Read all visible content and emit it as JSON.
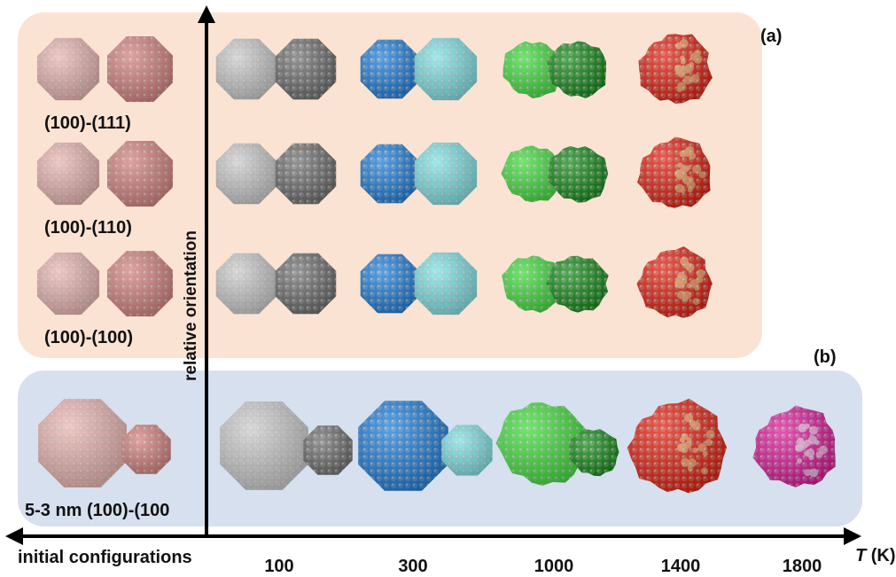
{
  "panels": {
    "a": {
      "letter": "(a)",
      "rows": [
        {
          "label": "(100)-(111)"
        },
        {
          "label": "(100)-(110)"
        },
        {
          "label": "(100)-(100)"
        }
      ]
    },
    "b": {
      "letter": "(b)",
      "label": "5-3 nm (100)-(100"
    }
  },
  "axes": {
    "y_label": "relative orientation",
    "x_left_label": "initial configurations",
    "x_label_italic": "T",
    "x_label_unit": " (K)",
    "x_ticks": [
      "100",
      "300",
      "1000",
      "1400",
      "1800"
    ]
  },
  "colors": {
    "initial_left": "#f0b8b4",
    "initial_right": "#d8827e",
    "t100_left": "#cfcfcf",
    "t100_right": "#6e6e6e",
    "t300_left": "#1f7fdc",
    "t300_right": "#7fe6ea",
    "t1000_left": "#3fe03a",
    "t1000_right": "#138a16",
    "t1400_main": "#e42010",
    "t1400_accent": "#f0a060",
    "t1800_main": "#dc1a9a",
    "t1800_accent": "#f3b6e4",
    "panel_a_bg": "#fbe3d3",
    "panel_b_bg": "#d6e0ee"
  }
}
